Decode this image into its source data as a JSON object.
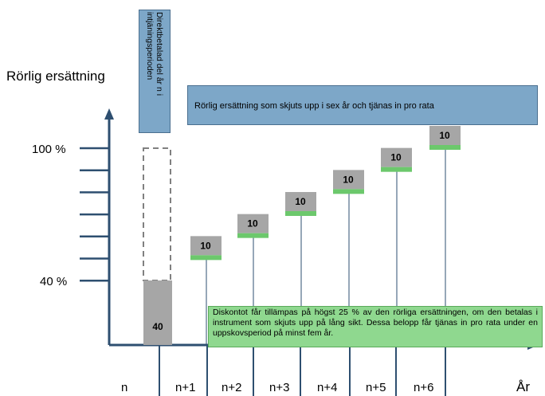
{
  "y_axis_label": "Rörlig ersättning",
  "tick_labels": [
    "100 %",
    "40 %"
  ],
  "direct_box_text": "Direktbetalad del år n i intjäningsperioden",
  "deferred_box_text": "Rörlig ersättning som skjuts upp i sex år och tjänas in pro rata",
  "note_text": "Diskontot får tillämpas på högst 25 % av den rörliga ersättningen, om den betalas i instrument som skjuts upp på lång sikt. Dessa belopp får tjänas in pro rata under en uppskovsperiod på minst fem år.",
  "x_axis_title": "År",
  "colors": {
    "axis": "#2e4f70",
    "box": "#7da7c8",
    "bar": "#a6a6a6",
    "green": "#6cc86c",
    "note": "#8fd88f"
  },
  "chart_data": {
    "type": "bar",
    "categories": [
      "n",
      "n+1",
      "n+2",
      "n+3",
      "n+4",
      "n+5",
      "n+6"
    ],
    "direct_payment": {
      "category": "n",
      "value": 40
    },
    "deferred_values": [
      10,
      10,
      10,
      10,
      10,
      10
    ],
    "deferred_levels": [
      50,
      60,
      70,
      80,
      90,
      100
    ]
  }
}
